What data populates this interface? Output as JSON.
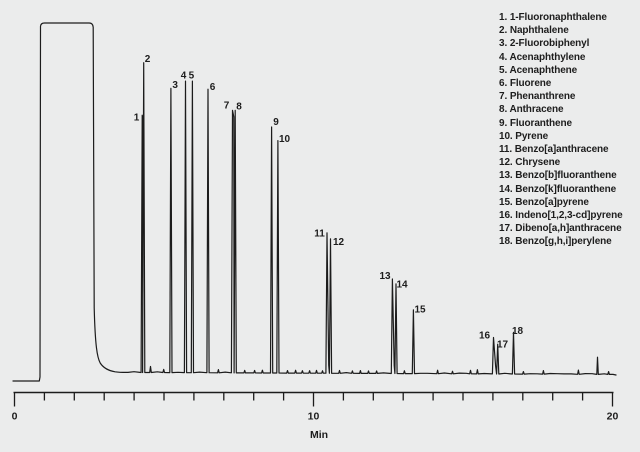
{
  "figure": {
    "background_color": "#ebecec",
    "trace_color": "#1c1c1c",
    "text_color": "#1d1d1d"
  },
  "chart_data": {
    "type": "line",
    "kind": "gc-chromatogram",
    "title": "",
    "xlabel": "Min",
    "ylabel": "",
    "x_range": [
      0,
      20
    ],
    "x_tick_interval_min": 1,
    "x_labeled_ticks": [
      0,
      10,
      20
    ],
    "grid": false,
    "legend_position": "right",
    "y_axis": "none (unlabeled detector response, relative units 0-1)",
    "solvent_front": {
      "rt_start_min": 0.87,
      "rt_end_min": 2.64,
      "height_rel": 1.0,
      "clipped": true
    },
    "peaks": [
      {
        "num": "1",
        "compound": "1-Fluoronaphthalene",
        "rt_min": 4.27,
        "height_rel": 0.735,
        "label_dx": -5.7,
        "label_dy": 2
      },
      {
        "num": "2",
        "compound": "Naphthalene",
        "rt_min": 4.32,
        "height_rel": 0.885,
        "label_dx": 3.8,
        "label_dy": -4
      },
      {
        "num": "3",
        "compound": "2-Fluorobiphenyl",
        "rt_min": 5.23,
        "height_rel": 0.812,
        "label_dx": 4.2,
        "label_dy": -4
      },
      {
        "num": "4",
        "compound": "Acenaphthylene",
        "rt_min": 5.72,
        "height_rel": 0.833,
        "label_dx": -2,
        "label_dy": -6
      },
      {
        "num": "5",
        "compound": "Acenaphthene",
        "rt_min": 5.95,
        "height_rel": 0.833,
        "label_dx": -1,
        "label_dy": -6
      },
      {
        "num": "6",
        "compound": "Fluorene",
        "rt_min": 6.47,
        "height_rel": 0.81,
        "label_dx": 4.5,
        "label_dy": -2.5
      },
      {
        "num": "7",
        "compound": "Phenanthrene",
        "rt_min": 7.29,
        "height_rel": 0.75,
        "label_dx": -6,
        "label_dy": -5.5
      },
      {
        "num": "8",
        "compound": "Anthracene",
        "rt_min": 7.38,
        "height_rel": 0.75,
        "label_dx": 3.8,
        "label_dy": -4.5
      },
      {
        "num": "9",
        "compound": "Fluoranthene",
        "rt_min": 8.6,
        "height_rel": 0.703,
        "label_dx": 4.4,
        "label_dy": -5.5
      },
      {
        "num": "10",
        "compound": "Pyrene",
        "rt_min": 8.81,
        "height_rel": 0.664,
        "label_dx": 6.6,
        "label_dy": -2
      },
      {
        "num": "11",
        "compound": "Benzo[a]anthracene",
        "rt_min": 10.45,
        "height_rel": 0.401,
        "label_dx": -7.5,
        "label_dy": 0
      },
      {
        "num": "12",
        "compound": "Chrysene",
        "rt_min": 10.57,
        "height_rel": 0.384,
        "label_dx": 8,
        "label_dy": 2.5
      },
      {
        "num": "13",
        "compound": "Benzo[b]fluoranthene",
        "rt_min": 12.64,
        "height_rel": 0.27,
        "label_dx": -7.4,
        "label_dy": -3.5
      },
      {
        "num": "14",
        "compound": "Benzo[k]fluoranthene",
        "rt_min": 12.76,
        "height_rel": 0.256,
        "label_dx": 6,
        "label_dy": 0
      },
      {
        "num": "15",
        "compound": "Benzo[a]pyrene",
        "rt_min": 13.34,
        "height_rel": 0.182,
        "label_dx": 6.6,
        "label_dy": -1
      },
      {
        "num": "16",
        "compound": "Indeno[1,2,3-cd]pyrene",
        "rt_min": 16.02,
        "height_rel": 0.104,
        "label_dx": -9,
        "label_dy": -2.5
      },
      {
        "num": "17",
        "compound": "Dibeno[a,h]anthracene",
        "rt_min": 16.16,
        "height_rel": 0.085,
        "label_dx": 4.8,
        "label_dy": 0
      },
      {
        "num": "18",
        "compound": "Benzo[g,h,i]perylene",
        "rt_min": 16.69,
        "height_rel": 0.119,
        "label_dx": 4,
        "label_dy": -2
      }
    ],
    "unlabeled_features": [
      {
        "rt_min": 4.55,
        "height_rel": 0.017
      },
      {
        "rt_min": 4.99,
        "height_rel": 0.009
      },
      {
        "rt_min": 6.82,
        "height_rel": 0.009
      },
      {
        "rt_min": 7.7,
        "height_rel": 0.007
      },
      {
        "rt_min": 8.03,
        "height_rel": 0.007
      },
      {
        "rt_min": 8.29,
        "height_rel": 0.008
      },
      {
        "rt_min": 9.13,
        "height_rel": 0.007
      },
      {
        "rt_min": 9.4,
        "height_rel": 0.008
      },
      {
        "rt_min": 9.63,
        "height_rel": 0.007
      },
      {
        "rt_min": 9.87,
        "height_rel": 0.007
      },
      {
        "rt_min": 10.1,
        "height_rel": 0.008
      },
      {
        "rt_min": 10.3,
        "height_rel": 0.007
      },
      {
        "rt_min": 10.87,
        "height_rel": 0.008
      },
      {
        "rt_min": 11.3,
        "height_rel": 0.007
      },
      {
        "rt_min": 11.57,
        "height_rel": 0.008
      },
      {
        "rt_min": 11.84,
        "height_rel": 0.007
      },
      {
        "rt_min": 12.11,
        "height_rel": 0.007
      },
      {
        "rt_min": 13.04,
        "height_rel": 0.008
      },
      {
        "rt_min": 14.15,
        "height_rel": 0.01
      },
      {
        "rt_min": 14.65,
        "height_rel": 0.007
      },
      {
        "rt_min": 15.25,
        "height_rel": 0.01
      },
      {
        "rt_min": 15.48,
        "height_rel": 0.012
      },
      {
        "rt_min": 17.02,
        "height_rel": 0.007
      },
      {
        "rt_min": 17.69,
        "height_rel": 0.01
      },
      {
        "rt_min": 18.86,
        "height_rel": 0.012
      },
      {
        "rt_min": 19.5,
        "height_rel": 0.049
      },
      {
        "rt_min": 19.87,
        "height_rel": 0.008
      }
    ]
  }
}
